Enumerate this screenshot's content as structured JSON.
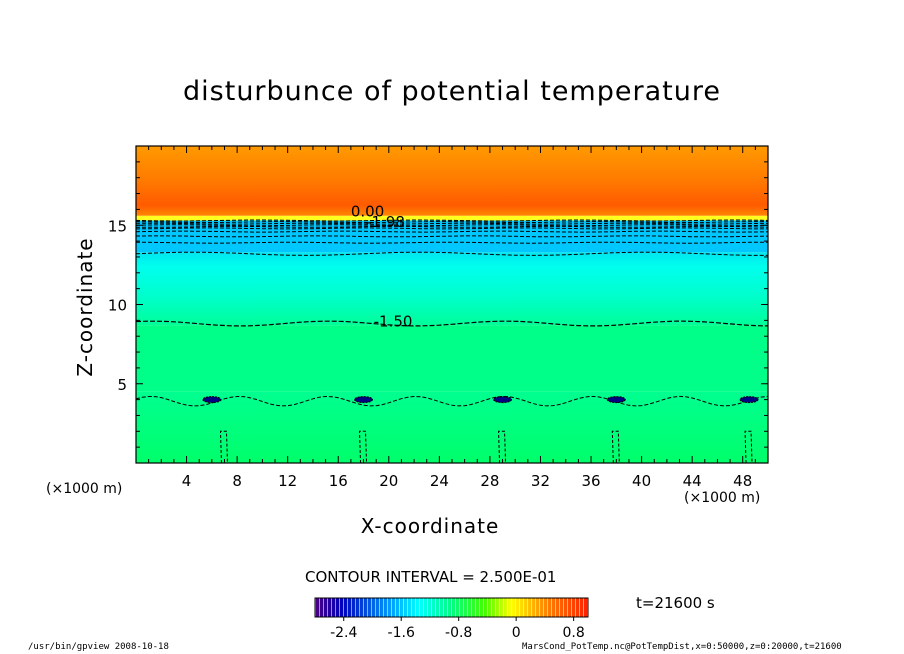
{
  "chart_data": {
    "type": "heatmap",
    "title": "disturbunce of potential temperature",
    "xlabel": "X-coordinate",
    "ylabel": "Z-coordinate",
    "x_unit": "(×1000 m)",
    "y_unit": "(×1000 m)",
    "xlim": [
      0,
      50
    ],
    "ylim": [
      0,
      20
    ],
    "x_ticks": [
      4,
      8,
      12,
      16,
      20,
      24,
      28,
      32,
      36,
      40,
      44,
      48
    ],
    "y_ticks": [
      5,
      10,
      15
    ],
    "contour_interval_label": "CONTOUR INTERVAL = 2.500E-01",
    "time_label": "t=21600 s",
    "contour_labels": [
      "0.00",
      "-1.98",
      "-1.50"
    ],
    "colorbar": {
      "min": -2.8,
      "max": 1.0,
      "ticks": [
        "-2.4",
        "-1.6",
        "-0.8",
        "0",
        "0.8"
      ],
      "tick_values": [
        -2.4,
        -1.6,
        -0.8,
        0,
        0.8
      ]
    },
    "layers": [
      {
        "z_from": 0,
        "z_to": 4.5,
        "value": -1.3
      },
      {
        "z_from": 4.5,
        "z_to": 8.7,
        "value": -1.45
      },
      {
        "z_from": 8.7,
        "z_to": 13.3,
        "value": -1.6
      },
      {
        "z_from": 13.3,
        "z_to": 15.3,
        "value": -1.8
      },
      {
        "z_from": 15.3,
        "z_to": 15.6,
        "value": 0.3
      },
      {
        "z_from": 15.6,
        "z_to": 20,
        "value": 0.75
      }
    ],
    "grid": false
  },
  "footer": {
    "left": "/usr/bin/gpview   2008-10-18",
    "right": "MarsCond_PotTemp.nc@PotTempDist,x=0:50000,z=0:20000,t=21600"
  }
}
